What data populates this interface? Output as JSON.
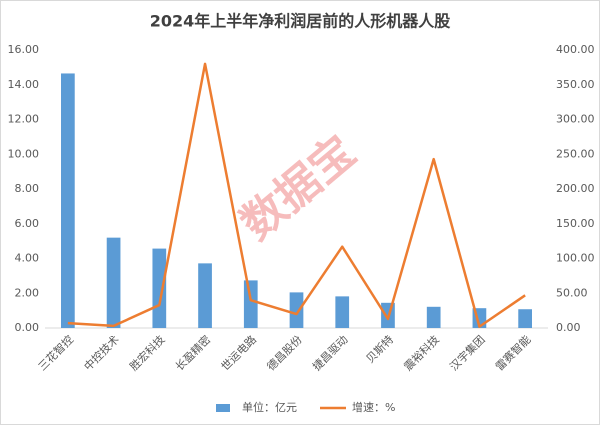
{
  "chart_data": {
    "type": "bar",
    "title": "2024年上半年净利润居前的人形机器人股",
    "watermark": "数据宝",
    "categories": [
      "三花智控",
      "中控技术",
      "胜宏科技",
      "长盈精密",
      "世运电路",
      "德昌股份",
      "捷昌驱动",
      "贝斯特",
      "震裕科技",
      "汉宇集团",
      "雷赛智能"
    ],
    "series": [
      {
        "name": "单位：亿元",
        "type": "bar",
        "color": "#5b9bd5",
        "values": [
          14.65,
          5.2,
          4.57,
          3.72,
          2.74,
          2.05,
          1.82,
          1.45,
          1.22,
          1.14,
          1.08
        ]
      },
      {
        "name": "增速：%",
        "type": "line",
        "axis": "y2",
        "color": "#ed7d31",
        "values": [
          7,
          3,
          33,
          380,
          40,
          20,
          117,
          13,
          243,
          2,
          47
        ]
      }
    ],
    "ylim": [
      0,
      16
    ],
    "yticks": [
      {
        "value": 0,
        "label": "0.00"
      },
      {
        "value": 2,
        "label": "2.00"
      },
      {
        "value": 4,
        "label": "4.00"
      },
      {
        "value": 6,
        "label": "6.00"
      },
      {
        "value": 8,
        "label": "8.00"
      },
      {
        "value": 10,
        "label": "10.00"
      },
      {
        "value": 12,
        "label": "12.00"
      },
      {
        "value": 14,
        "label": "14.00"
      },
      {
        "value": 16,
        "label": "16.00"
      }
    ],
    "y2lim": [
      0,
      400
    ],
    "y2ticks": [
      {
        "value": 0,
        "label": "0.00"
      },
      {
        "value": 50,
        "label": "50.00"
      },
      {
        "value": 100,
        "label": "100.00"
      },
      {
        "value": 150,
        "label": "150.00"
      },
      {
        "value": 200,
        "label": "200.00"
      },
      {
        "value": 250,
        "label": "250.00"
      },
      {
        "value": 300,
        "label": "300.00"
      },
      {
        "value": 350,
        "label": "350.00"
      },
      {
        "value": 400,
        "label": "400.00"
      }
    ],
    "grid": false
  }
}
